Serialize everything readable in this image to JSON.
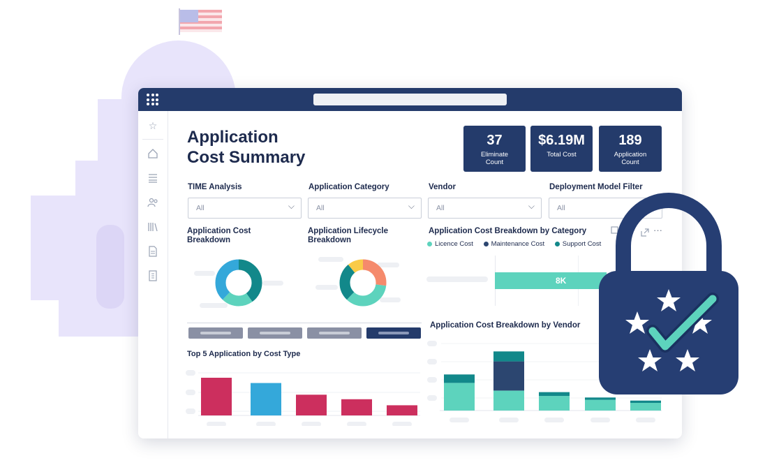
{
  "dashboard": {
    "title_line1": "Application",
    "title_line2": "Cost Summary"
  },
  "kpis": [
    {
      "value": "37",
      "label_line1": "Eliminate",
      "label_line2": "Count"
    },
    {
      "value": "$6.19M",
      "label_line1": "Total Cost",
      "label_line2": ""
    },
    {
      "value": "189",
      "label_line1": "Application",
      "label_line2": "Count"
    }
  ],
  "filters": [
    {
      "label": "TIME Analysis",
      "value": "All"
    },
    {
      "label": "Application Category",
      "value": "All"
    },
    {
      "label": "Vendor",
      "value": "All"
    },
    {
      "label": "Deployment Model Filter",
      "value": "All"
    }
  ],
  "sections": {
    "cost_breakdown_line1": "Application Cost",
    "cost_breakdown_line2": "Breakdown",
    "lifecycle_line1": "Application Lifecycle",
    "lifecycle_line2": "Breakdown",
    "by_category": "Application Cost Breakdown by Category",
    "by_vendor": "Application Cost Breakdown by Vendor",
    "top5": "Top 5 Application by Cost Type",
    "more_label": "···"
  },
  "legend": [
    {
      "name": "Licence Cost",
      "color": "#5dd3bd"
    },
    {
      "name": "Maintenance Cost",
      "color": "#2c4670"
    },
    {
      "name": "Support Cost",
      "color": "#12888a"
    }
  ],
  "category_bar": {
    "label": "8K",
    "color": "#5dd3bd"
  },
  "colors": {
    "navy": "#243b6b",
    "teal_light": "#5dd3bd",
    "teal_dark": "#12888a",
    "blue": "#34a8da",
    "crimson": "#cc2f5e",
    "orange": "#f58a6c",
    "yellow": "#f9cb48",
    "lock_blue": "#263e73"
  },
  "icons": [
    "grid-icon",
    "star-icon",
    "home-icon",
    "list-icon",
    "users-icon",
    "library-icon",
    "document-icon",
    "report-icon",
    "copy-icon",
    "expand-icon",
    "more-icon",
    "lock-icon",
    "check-icon",
    "flag-icon"
  ],
  "chart_data": [
    {
      "type": "pie",
      "title": "Application Cost Breakdown",
      "series": [
        {
          "values": [
            40,
            22,
            38
          ],
          "colors": [
            "#12888a",
            "#5dd3bd",
            "#34a8da"
          ]
        }
      ]
    },
    {
      "type": "pie",
      "title": "Application Lifecycle Breakdown",
      "series": [
        {
          "values": [
            27,
            35,
            27,
            11
          ],
          "colors": [
            "#f58a6c",
            "#5dd3bd",
            "#12888a",
            "#f9cb48"
          ]
        }
      ]
    },
    {
      "type": "bar",
      "title": "Top 5 Application by Cost Type",
      "categories": [
        "",
        "",
        "",
        "",
        ""
      ],
      "values": [
        100,
        86,
        55,
        43,
        27
      ],
      "colors": [
        "#cc2f5e",
        "#34a8da",
        "#cc2f5e",
        "#cc2f5e",
        "#cc2f5e"
      ]
    },
    {
      "type": "bar",
      "title": "Application Cost Breakdown by Vendor",
      "categories": [
        "",
        "",
        "",
        "",
        ""
      ],
      "series": [
        {
          "name": "Licence Cost",
          "values": [
            36,
            26,
            19,
            14,
            10
          ]
        },
        {
          "name": "Maintenance Cost",
          "values": [
            0,
            38,
            0,
            0,
            0
          ]
        },
        {
          "name": "Support Cost",
          "values": [
            11,
            13,
            5,
            3,
            3
          ]
        }
      ]
    }
  ]
}
